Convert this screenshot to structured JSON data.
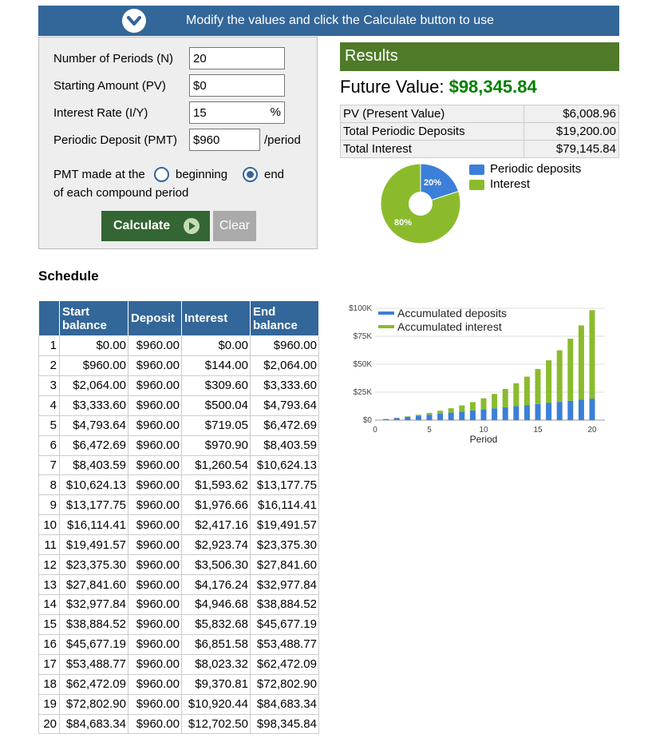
{
  "topbar": {
    "message": "Modify the values and click the Calculate button to use",
    "icon": "chevron-down-icon"
  },
  "form": {
    "periods_label": "Number of Periods (N)",
    "periods_value": "20",
    "pv_label": "Starting Amount (PV)",
    "pv_value": "$0",
    "rate_label": "Interest Rate (I/Y)",
    "rate_value": "15",
    "rate_suffix": "%",
    "pmt_label": "Periodic Deposit (PMT)",
    "pmt_value": "$960",
    "pmt_suffix": "/period",
    "timing_prefix": "PMT made at the",
    "timing_beginning": "beginning",
    "timing_end": "end",
    "timing_selected": "end",
    "timing_suffix": "of each compound period",
    "calculate_label": "Calculate",
    "clear_label": "Clear"
  },
  "results": {
    "header": "Results",
    "fv_label": "Future Value:",
    "fv_value": "$98,345.84",
    "rows": [
      {
        "label": "PV (Present Value)",
        "value": "$6,008.96"
      },
      {
        "label": "Total Periodic Deposits",
        "value": "$19,200.00"
      },
      {
        "label": "Total Interest",
        "value": "$79,145.84"
      }
    ]
  },
  "colors": {
    "deposits": "#3b7fd9",
    "interest": "#8bbb2d",
    "header_blue": "#336699",
    "results_green": "#4f7a28",
    "fv_green": "#008000"
  },
  "pie": {
    "legend": [
      "Periodic deposits",
      "Interest"
    ],
    "slices": [
      {
        "name": "Periodic deposits",
        "percent": 20,
        "label": "20%"
      },
      {
        "name": "Interest",
        "percent": 80,
        "label": "80%"
      }
    ]
  },
  "schedule": {
    "title": "Schedule",
    "headers": [
      "",
      "Start balance",
      "Deposit",
      "Interest",
      "End balance"
    ],
    "rows": [
      [
        "1",
        "$0.00",
        "$960.00",
        "$0.00",
        "$960.00"
      ],
      [
        "2",
        "$960.00",
        "$960.00",
        "$144.00",
        "$2,064.00"
      ],
      [
        "3",
        "$2,064.00",
        "$960.00",
        "$309.60",
        "$3,333.60"
      ],
      [
        "4",
        "$3,333.60",
        "$960.00",
        "$500.04",
        "$4,793.64"
      ],
      [
        "5",
        "$4,793.64",
        "$960.00",
        "$719.05",
        "$6,472.69"
      ],
      [
        "6",
        "$6,472.69",
        "$960.00",
        "$970.90",
        "$8,403.59"
      ],
      [
        "7",
        "$8,403.59",
        "$960.00",
        "$1,260.54",
        "$10,624.13"
      ],
      [
        "8",
        "$10,624.13",
        "$960.00",
        "$1,593.62",
        "$13,177.75"
      ],
      [
        "9",
        "$13,177.75",
        "$960.00",
        "$1,976.66",
        "$16,114.41"
      ],
      [
        "10",
        "$16,114.41",
        "$960.00",
        "$2,417.16",
        "$19,491.57"
      ],
      [
        "11",
        "$19,491.57",
        "$960.00",
        "$2,923.74",
        "$23,375.30"
      ],
      [
        "12",
        "$23,375.30",
        "$960.00",
        "$3,506.30",
        "$27,841.60"
      ],
      [
        "13",
        "$27,841.60",
        "$960.00",
        "$4,176.24",
        "$32,977.84"
      ],
      [
        "14",
        "$32,977.84",
        "$960.00",
        "$4,946.68",
        "$38,884.52"
      ],
      [
        "15",
        "$38,884.52",
        "$960.00",
        "$5,832.68",
        "$45,677.19"
      ],
      [
        "16",
        "$45,677.19",
        "$960.00",
        "$6,851.58",
        "$53,488.77"
      ],
      [
        "17",
        "$53,488.77",
        "$960.00",
        "$8,023.32",
        "$62,472.09"
      ],
      [
        "18",
        "$62,472.09",
        "$960.00",
        "$9,370.81",
        "$72,802.90"
      ],
      [
        "19",
        "$72,802.90",
        "$960.00",
        "$10,920.44",
        "$84,683.34"
      ],
      [
        "20",
        "$84,683.34",
        "$960.00",
        "$12,702.50",
        "$98,345.84"
      ]
    ]
  },
  "chart_data": {
    "type": "bar",
    "stacked": true,
    "xlabel": "Period",
    "ylabel": "",
    "x": [
      1,
      2,
      3,
      4,
      5,
      6,
      7,
      8,
      9,
      10,
      11,
      12,
      13,
      14,
      15,
      16,
      17,
      18,
      19,
      20
    ],
    "xticks": [
      0,
      5,
      10,
      15,
      20
    ],
    "xlim": [
      0,
      20
    ],
    "ylim": [
      0,
      100000
    ],
    "yticks": [
      0,
      25000,
      50000,
      75000,
      100000
    ],
    "ytick_labels": [
      "$0",
      "$25K",
      "$50K",
      "$75K",
      "$100K"
    ],
    "legend_position": "top-left",
    "grid": true,
    "series": [
      {
        "name": "Accumulated deposits",
        "values": [
          960,
          1920,
          2880,
          3840,
          4800,
          5760,
          6720,
          7680,
          8640,
          9600,
          10560,
          11520,
          12480,
          13440,
          14400,
          15360,
          16320,
          17280,
          18240,
          19200
        ]
      },
      {
        "name": "Accumulated interest",
        "values": [
          0,
          144,
          453.6,
          953.64,
          1672.69,
          2643.59,
          3904.13,
          5497.75,
          7474.41,
          9891.57,
          12815.3,
          16321.6,
          20497.84,
          25444.52,
          31277.19,
          38128.77,
          46152.09,
          55522.9,
          66443.34,
          79145.84
        ]
      }
    ]
  }
}
